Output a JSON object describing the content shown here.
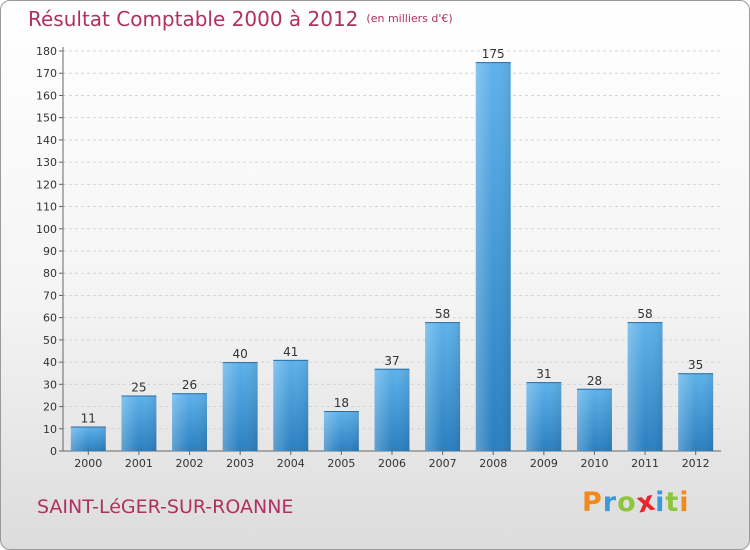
{
  "header": {
    "title": "Résultat Comptable 2000 à 2012",
    "unit": "(en milliers d'€)"
  },
  "footer": {
    "location": "SAINT-LéGER-SUR-ROANNE",
    "logo_text": "Proxiti"
  },
  "colors": {
    "title": "#b03060",
    "bar": "#3d97d6",
    "grid": "#d4d4d4"
  },
  "logo_colors": [
    "#f08a1c",
    "#3a9ad9",
    "#8cc63f",
    "#e8262d",
    "#3a9ad9",
    "#8cc63f",
    "#f08a1c"
  ],
  "chart_data": {
    "type": "bar",
    "title": "Résultat Comptable 2000 à 2012",
    "subtitle": "(en milliers d'€)",
    "xlabel": "",
    "ylabel": "",
    "categories": [
      "2000",
      "2001",
      "2002",
      "2003",
      "2004",
      "2005",
      "2006",
      "2007",
      "2008",
      "2009",
      "2010",
      "2011",
      "2012"
    ],
    "values": [
      11,
      25,
      26,
      40,
      41,
      18,
      37,
      58,
      175,
      31,
      28,
      58,
      35
    ],
    "ylim": [
      0,
      180
    ],
    "yticks": [
      0,
      10,
      20,
      30,
      40,
      50,
      60,
      70,
      80,
      90,
      100,
      110,
      120,
      130,
      140,
      150,
      160,
      170,
      180
    ],
    "grid": true,
    "data_labels": true
  }
}
